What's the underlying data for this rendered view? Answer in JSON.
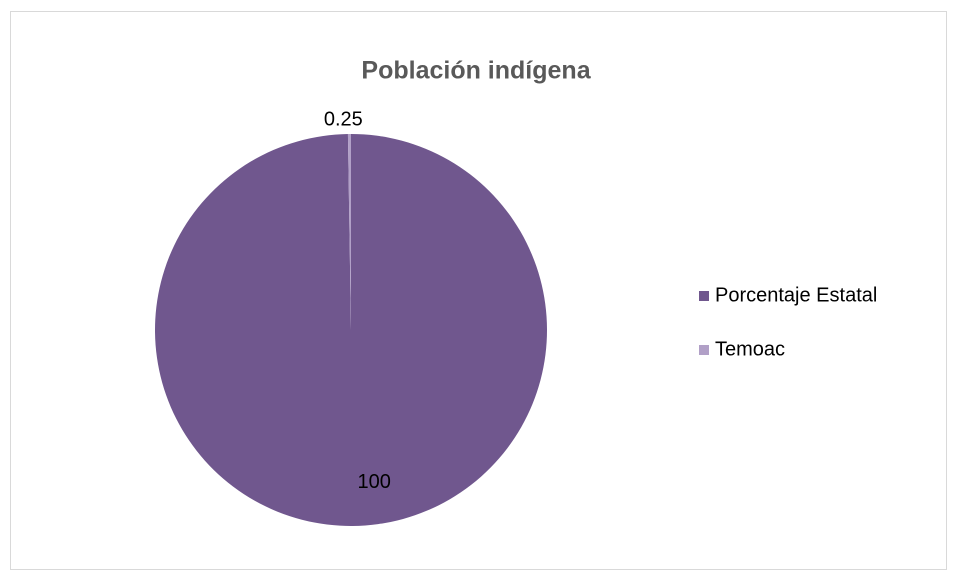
{
  "chart_data": {
    "type": "pie",
    "title": "Población indígena",
    "categories": [
      "Porcentaje Estatal",
      "Temoac"
    ],
    "values": [
      100,
      0.25
    ],
    "colors": [
      "#70578e",
      "#b1a0c7"
    ],
    "legend": "right"
  }
}
